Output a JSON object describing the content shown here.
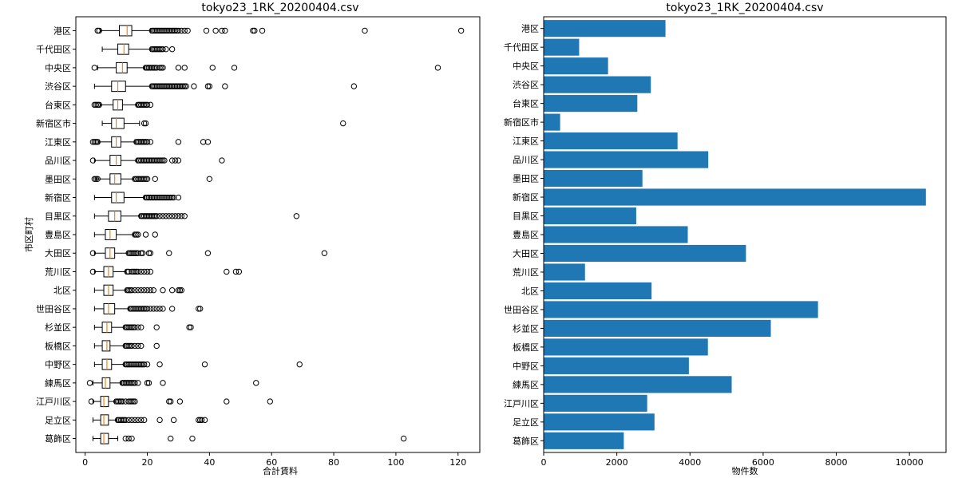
{
  "chart_data": [
    {
      "type": "boxplot",
      "orientation": "horizontal",
      "title": "tokyo23_1RK_20200404.csv",
      "xlabel": "合計賃料",
      "ylabel": "市区町村",
      "xlim": [
        -3,
        127
      ],
      "xticks": [
        0,
        20,
        40,
        60,
        80,
        100,
        120
      ],
      "categories": [
        "港区",
        "千代田区",
        "中央区",
        "渋谷区",
        "台東区",
        "新宿区市",
        "江東区",
        "品川区",
        "墨田区",
        "新宿区",
        "目黒区",
        "豊島区",
        "大田区",
        "荒川区",
        "北区",
        "世田谷区",
        "杉並区",
        "板橋区",
        "中野区",
        "練馬区",
        "江戸川区",
        "足立区",
        "葛飾区"
      ],
      "boxes": [
        {
          "q1": 11,
          "med": 13.5,
          "q3": 15,
          "wlo": 5,
          "whi": 21,
          "fliers": [
            4,
            4.5,
            21.5,
            22,
            22.5,
            23,
            23.5,
            24,
            24.5,
            25,
            25.5,
            26,
            26.5,
            27,
            27.5,
            28,
            28.5,
            29,
            29.5,
            30,
            31,
            32,
            33,
            39,
            42,
            44,
            45,
            54,
            54.5,
            57,
            90,
            121
          ]
        },
        {
          "q1": 10.5,
          "med": 12.5,
          "q3": 14,
          "wlo": 5.5,
          "whi": 21,
          "fliers": [
            21.5,
            22,
            22.5,
            23,
            23.5,
            24,
            24.5,
            25,
            26,
            28
          ]
        },
        {
          "q1": 10,
          "med": 12,
          "q3": 13.5,
          "wlo": 4,
          "whi": 19,
          "fliers": [
            3,
            19.5,
            20,
            20.5,
            21,
            21.5,
            22,
            22.5,
            23,
            24,
            24.5,
            25,
            30,
            32,
            41,
            48,
            113.5
          ]
        },
        {
          "q1": 8.5,
          "med": 10.5,
          "q3": 13,
          "wlo": 3,
          "whi": 21,
          "fliers": [
            21.5,
            22,
            22.5,
            23,
            23.5,
            24,
            24.5,
            25,
            25.5,
            26,
            26.5,
            27,
            27.5,
            28,
            28.5,
            29,
            29.5,
            30,
            30.5,
            31,
            31.5,
            32,
            32.5,
            35,
            39.5,
            40,
            45,
            86.5
          ]
        },
        {
          "q1": 9,
          "med": 10.5,
          "q3": 12,
          "wlo": 5,
          "whi": 16.5,
          "fliers": [
            3,
            3.5,
            4,
            4.5,
            17,
            17.5,
            18,
            18.5,
            19,
            19.5,
            20,
            21
          ]
        },
        {
          "q1": 8.5,
          "med": 10,
          "q3": 12.5,
          "wlo": 5.5,
          "whi": 17.5,
          "fliers": [
            19,
            19.5,
            83
          ]
        },
        {
          "q1": 8.5,
          "med": 10,
          "q3": 11.5,
          "wlo": 4.5,
          "whi": 16,
          "fliers": [
            2.5,
            3,
            3.5,
            4,
            16.5,
            17,
            17.5,
            18,
            18.5,
            19,
            19.5,
            20,
            21,
            30,
            38,
            39.5
          ]
        },
        {
          "q1": 8,
          "med": 10,
          "q3": 11.5,
          "wlo": 3,
          "whi": 16.5,
          "fliers": [
            2.5,
            17,
            17.5,
            18,
            18.5,
            19,
            19.5,
            20,
            20.5,
            21,
            21.5,
            22,
            22.5,
            23,
            23.5,
            24,
            24.5,
            25,
            25.5,
            28,
            29,
            30,
            44
          ]
        },
        {
          "q1": 8,
          "med": 9.5,
          "q3": 11.5,
          "wlo": 3.5,
          "whi": 15.5,
          "fliers": [
            3,
            3.5,
            4,
            16,
            16.5,
            17,
            17.5,
            18,
            18.5,
            19,
            19.5,
            20,
            22.5,
            40
          ]
        },
        {
          "q1": 8.5,
          "med": 10,
          "q3": 12.5,
          "wlo": 3,
          "whi": 19,
          "fliers": [
            19.5,
            20,
            20.5,
            21,
            21.5,
            22,
            22.5,
            23,
            23.5,
            24,
            24.5,
            25,
            25.5,
            26,
            26.5,
            27,
            27.5,
            28,
            28.5,
            30
          ]
        },
        {
          "q1": 7.5,
          "med": 9.5,
          "q3": 11.5,
          "wlo": 3,
          "whi": 17.5,
          "fliers": [
            18,
            18.5,
            19,
            19.5,
            20,
            20.5,
            21,
            21.5,
            22,
            22.5,
            23,
            24,
            25,
            26,
            27,
            28,
            29,
            30,
            31,
            32,
            68
          ]
        },
        {
          "q1": 6.5,
          "med": 8,
          "q3": 10,
          "wlo": 3,
          "whi": 15.5,
          "fliers": [
            16,
            16.5,
            17,
            19.5,
            22.5
          ]
        },
        {
          "q1": 6.5,
          "med": 8,
          "q3": 9.5,
          "wlo": 3,
          "whi": 13.5,
          "fliers": [
            2.5,
            14,
            14.5,
            15,
            15.5,
            16,
            16.5,
            17,
            18,
            18.5,
            20.5,
            21,
            27,
            39.5,
            77
          ]
        },
        {
          "q1": 6,
          "med": 7.5,
          "q3": 9,
          "wlo": 3,
          "whi": 13,
          "fliers": [
            2.5,
            13.5,
            14,
            15,
            15.5,
            16,
            16.5,
            17,
            18,
            19,
            20,
            21,
            45.5,
            48.5,
            49.5
          ]
        },
        {
          "q1": 6,
          "med": 7.5,
          "q3": 9,
          "wlo": 3,
          "whi": 13,
          "fliers": [
            13.5,
            14,
            14.5,
            15,
            16,
            17,
            18,
            19,
            20,
            21,
            22,
            25,
            28,
            30,
            30.5,
            31
          ]
        },
        {
          "q1": 6,
          "med": 7.5,
          "q3": 9.5,
          "wlo": 3,
          "whi": 14,
          "fliers": [
            14.5,
            15,
            15.5,
            16,
            16.5,
            17,
            17.5,
            18,
            18.5,
            19,
            19.5,
            20,
            21,
            22,
            23,
            24,
            25,
            28,
            36.5,
            37
          ]
        },
        {
          "q1": 5.5,
          "med": 7,
          "q3": 8.5,
          "wlo": 3,
          "whi": 12.5,
          "fliers": [
            13,
            13.5,
            14,
            14.5,
            15,
            15.5,
            16,
            17,
            18,
            23,
            33.5,
            34
          ]
        },
        {
          "q1": 5.5,
          "med": 7,
          "q3": 8,
          "wlo": 3,
          "whi": 12.5,
          "fliers": [
            13,
            13.5,
            14,
            14.5,
            15,
            16,
            17,
            18,
            23
          ]
        },
        {
          "q1": 5.5,
          "med": 7,
          "q3": 8.5,
          "wlo": 3,
          "whi": 12.5,
          "fliers": [
            13,
            13.5,
            14,
            14.5,
            15,
            15.5,
            16,
            16.5,
            17,
            17.5,
            18,
            18.5,
            19,
            20,
            24,
            38.5,
            69
          ]
        },
        {
          "q1": 5.5,
          "med": 6.5,
          "q3": 8,
          "wlo": 2.5,
          "whi": 11.5,
          "fliers": [
            1.5,
            12,
            12.5,
            13,
            13.5,
            14,
            14.5,
            15,
            15.5,
            16,
            17,
            20,
            20.5,
            25,
            55
          ]
        },
        {
          "q1": 5,
          "med": 6,
          "q3": 7.5,
          "wlo": 2.5,
          "whi": 9.5,
          "fliers": [
            2,
            10,
            10.5,
            11,
            11.5,
            12,
            13,
            14,
            14.5,
            15,
            15.5,
            16,
            27,
            27.5,
            30.5,
            45.5,
            59.5
          ]
        },
        {
          "q1": 5,
          "med": 6,
          "q3": 7.5,
          "wlo": 2.5,
          "whi": 10,
          "fliers": [
            10.5,
            11,
            11.5,
            12,
            12.5,
            13,
            14,
            15,
            16,
            17,
            18,
            19,
            24,
            28.5,
            36.5,
            37,
            37.5,
            38.5
          ]
        },
        {
          "q1": 5,
          "med": 6,
          "q3": 7.5,
          "wlo": 2.5,
          "whi": 10.5,
          "fliers": [
            13,
            14,
            15,
            27.5,
            34.5,
            102.5
          ]
        }
      ]
    },
    {
      "type": "bar",
      "orientation": "horizontal",
      "title": "tokyo23_1RK_20200404.csv",
      "xlabel": "物件数",
      "xlim": [
        0,
        11000
      ],
      "xticks": [
        0,
        2000,
        4000,
        6000,
        8000,
        10000
      ],
      "categories": [
        "港区",
        "千代田区",
        "中央区",
        "渋谷区",
        "台東区",
        "新宿区市",
        "江東区",
        "品川区",
        "墨田区",
        "新宿区",
        "目黒区",
        "豊島区",
        "大田区",
        "荒川区",
        "北区",
        "世田谷区",
        "杉並区",
        "板橋区",
        "中野区",
        "練馬区",
        "江戸川区",
        "足立区",
        "葛飾区"
      ],
      "values": [
        3330,
        970,
        1760,
        2930,
        2560,
        450,
        3660,
        4500,
        2700,
        10450,
        2530,
        3940,
        5530,
        1130,
        2950,
        7500,
        6210,
        4490,
        3970,
        5140,
        2830,
        3030,
        2190
      ],
      "color": "#1f77b4"
    }
  ]
}
